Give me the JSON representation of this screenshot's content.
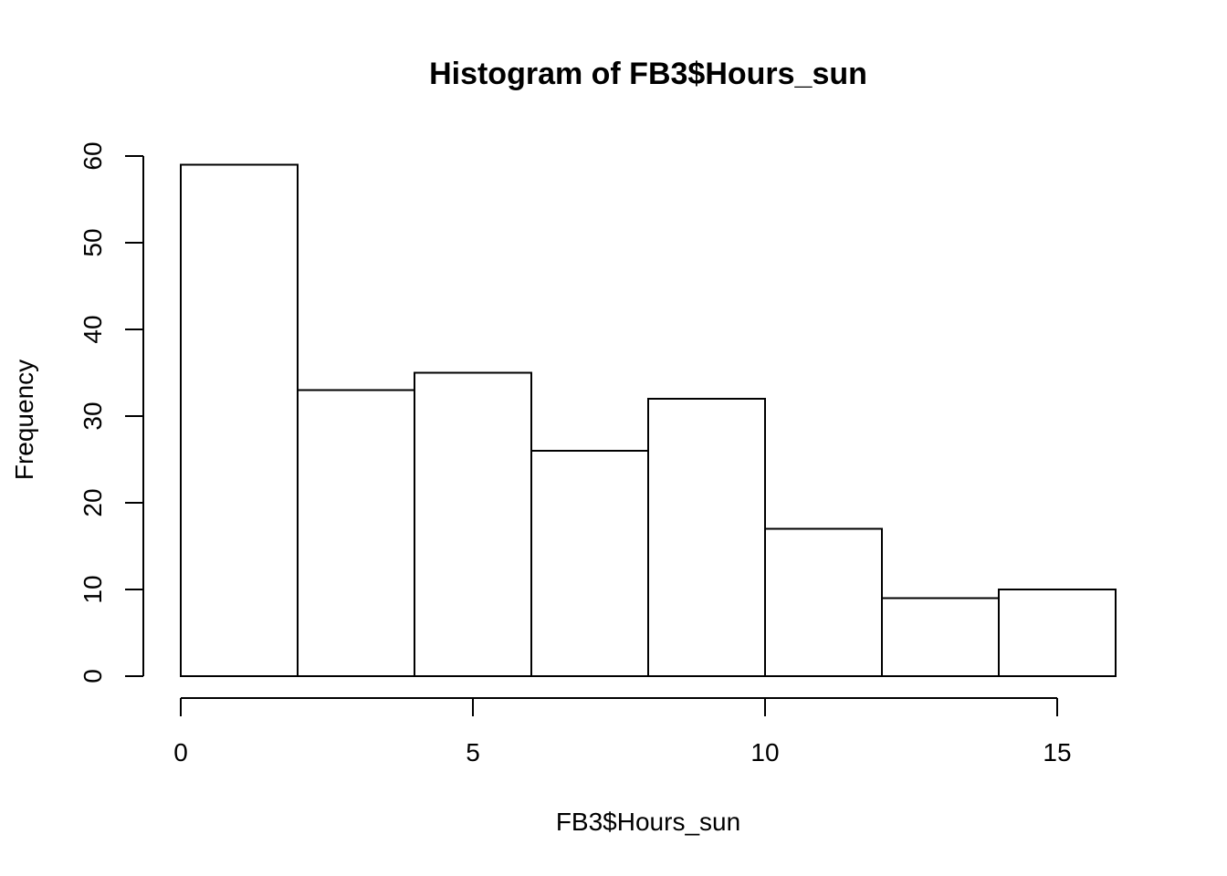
{
  "chart_data": {
    "type": "bar",
    "title": "Histogram of FB3$Hours_sun",
    "xlabel": "FB3$Hours_sun",
    "ylabel": "Frequency",
    "bins": [
      {
        "start": 0,
        "end": 2,
        "count": 59
      },
      {
        "start": 2,
        "end": 4,
        "count": 33
      },
      {
        "start": 4,
        "end": 6,
        "count": 35
      },
      {
        "start": 6,
        "end": 8,
        "count": 26
      },
      {
        "start": 8,
        "end": 10,
        "count": 32
      },
      {
        "start": 10,
        "end": 12,
        "count": 17
      },
      {
        "start": 12,
        "end": 14,
        "count": 9
      },
      {
        "start": 14,
        "end": 16,
        "count": 10
      }
    ],
    "xticks": [
      0,
      5,
      10,
      15
    ],
    "yticks": [
      0,
      10,
      20,
      30,
      40,
      50,
      60
    ],
    "xlim": [
      0,
      16
    ],
    "ylim": [
      0,
      60
    ],
    "grid": false,
    "legend": "none"
  }
}
